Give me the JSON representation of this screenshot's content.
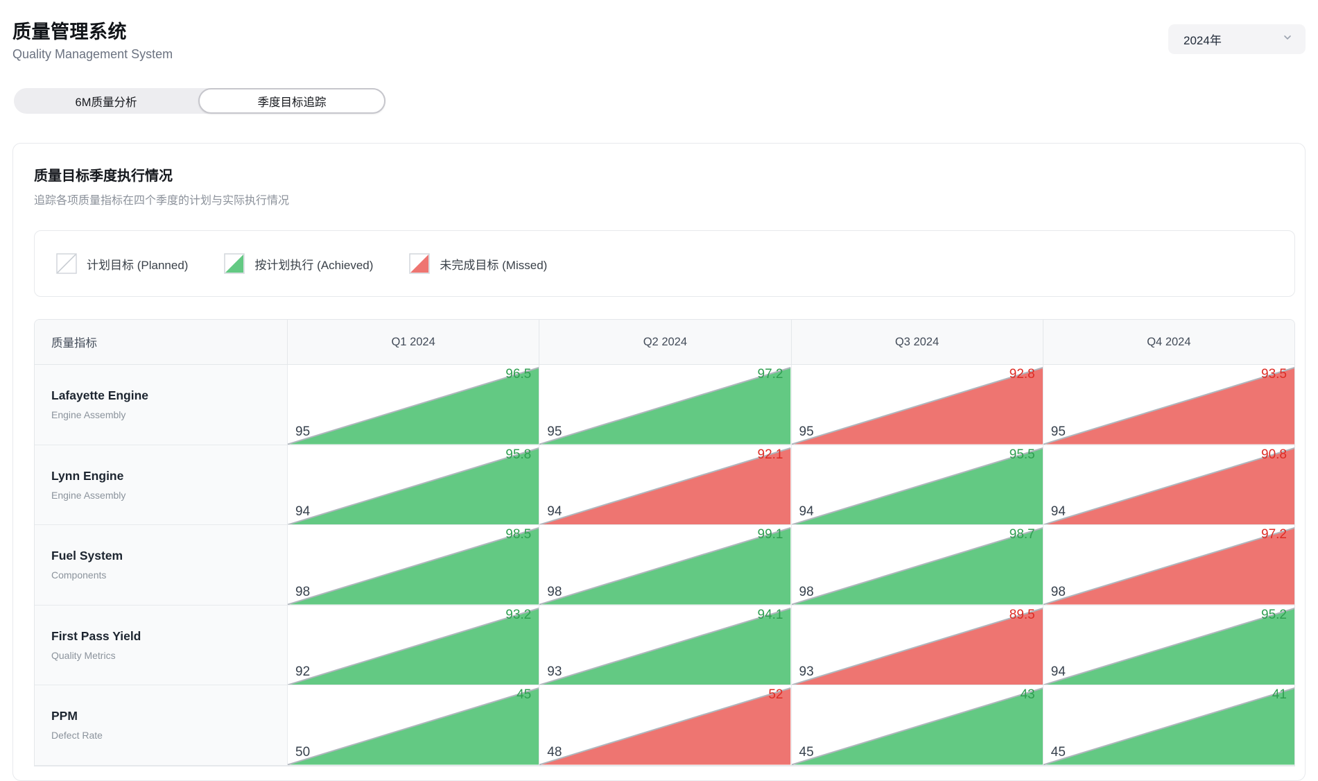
{
  "header": {
    "title": "质量管理系统",
    "subtitle": "Quality Management System",
    "year_select": {
      "value": "2024年",
      "icon": "chevron-down-icon"
    }
  },
  "tabs": [
    {
      "label": "6M质量分析",
      "active": false
    },
    {
      "label": "季度目标追踪",
      "active": true
    }
  ],
  "card": {
    "title": "质量目标季度执行情况",
    "subtitle": "追踪各项质量指标在四个季度的计划与实际执行情况"
  },
  "legend": [
    {
      "icon": "planned-icon",
      "label": "计划目标 (Planned)"
    },
    {
      "icon": "achieved-icon",
      "label": "按计划执行 (Achieved)"
    },
    {
      "icon": "missed-icon",
      "label": "未完成目标 (Missed)"
    }
  ],
  "colors": {
    "achieved_fill": "#63c983",
    "missed_fill": "#ee7571",
    "achieved_text": "#2f9e50",
    "missed_text": "#dd2c25",
    "diagonal_stroke": "#b0b6bd"
  },
  "table": {
    "metric_header": "质量指标",
    "quarter_headers": [
      "Q1 2024",
      "Q2 2024",
      "Q3 2024",
      "Q4 2024"
    ],
    "rows": [
      {
        "name": "Lafayette Engine",
        "category": "Engine Assembly",
        "cells": [
          {
            "plan": "95",
            "actual": "96.5",
            "status": "achieved"
          },
          {
            "plan": "95",
            "actual": "97.2",
            "status": "achieved"
          },
          {
            "plan": "95",
            "actual": "92.8",
            "status": "missed"
          },
          {
            "plan": "95",
            "actual": "93.5",
            "status": "missed"
          }
        ]
      },
      {
        "name": "Lynn Engine",
        "category": "Engine Assembly",
        "cells": [
          {
            "plan": "94",
            "actual": "95.8",
            "status": "achieved"
          },
          {
            "plan": "94",
            "actual": "92.1",
            "status": "missed"
          },
          {
            "plan": "94",
            "actual": "95.5",
            "status": "achieved"
          },
          {
            "plan": "94",
            "actual": "90.8",
            "status": "missed"
          }
        ]
      },
      {
        "name": "Fuel System",
        "category": "Components",
        "cells": [
          {
            "plan": "98",
            "actual": "98.5",
            "status": "achieved"
          },
          {
            "plan": "98",
            "actual": "99.1",
            "status": "achieved"
          },
          {
            "plan": "98",
            "actual": "98.7",
            "status": "achieved"
          },
          {
            "plan": "98",
            "actual": "97.2",
            "status": "missed"
          }
        ]
      },
      {
        "name": "First Pass Yield",
        "category": "Quality Metrics",
        "cells": [
          {
            "plan": "92",
            "actual": "93.2",
            "status": "achieved"
          },
          {
            "plan": "93",
            "actual": "94.1",
            "status": "achieved"
          },
          {
            "plan": "93",
            "actual": "89.5",
            "status": "missed"
          },
          {
            "plan": "94",
            "actual": "95.2",
            "status": "achieved"
          }
        ]
      },
      {
        "name": "PPM",
        "category": "Defect Rate",
        "cells": [
          {
            "plan": "50",
            "actual": "45",
            "status": "achieved"
          },
          {
            "plan": "48",
            "actual": "52",
            "status": "missed"
          },
          {
            "plan": "45",
            "actual": "43",
            "status": "achieved"
          },
          {
            "plan": "45",
            "actual": "41",
            "status": "achieved"
          }
        ]
      }
    ]
  }
}
